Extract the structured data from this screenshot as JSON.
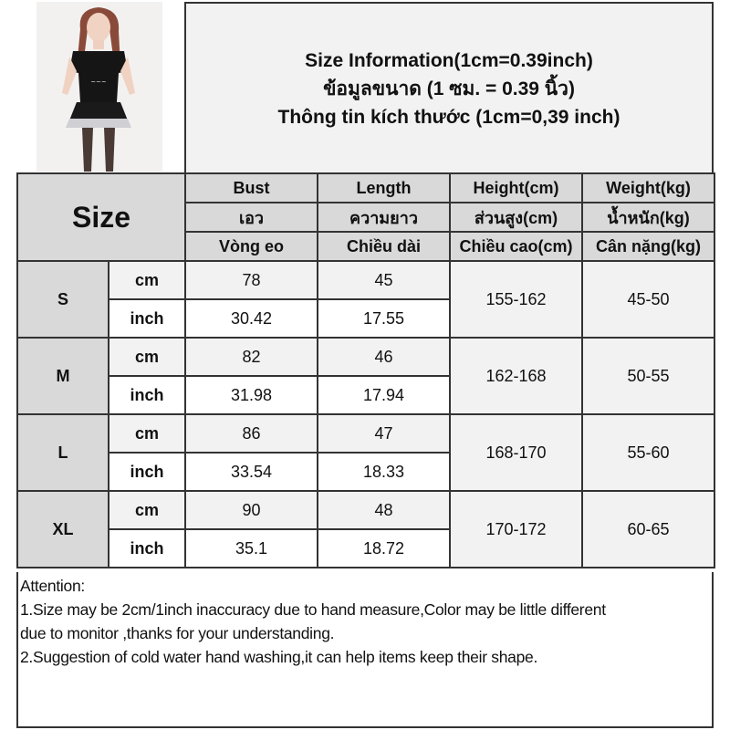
{
  "title_lines": [
    "Size Information(1cm=0.39inch)",
    "ข้อมูลขนาด (1 ซม. = 0.39 นิ้ว)",
    "Thông tin kích thước (1cm=0,39 inch)"
  ],
  "header": {
    "size_label": "Size",
    "columns": [
      {
        "en": "Bust",
        "th": "เอว",
        "vi": "Vòng eo"
      },
      {
        "en": "Length",
        "th": "ความยาว",
        "vi": "Chiều dài"
      },
      {
        "en": "Height(cm)",
        "th": "ส่วนสูง(cm)",
        "vi": "Chiều cao(cm)"
      },
      {
        "en": "Weight(kg)",
        "th": "น้ำหนัก(kg)",
        "vi": "Cân nặng(kg)"
      }
    ]
  },
  "units": {
    "cm": "cm",
    "inch": "inch"
  },
  "sizes": [
    {
      "size": "S",
      "cm": {
        "bust": "78",
        "length": "45"
      },
      "inch": {
        "bust": "30.42",
        "length": "17.55"
      },
      "height": "155-162",
      "weight": "45-50"
    },
    {
      "size": "M",
      "cm": {
        "bust": "82",
        "length": "46"
      },
      "inch": {
        "bust": "31.98",
        "length": "17.94"
      },
      "height": "162-168",
      "weight": "50-55"
    },
    {
      "size": "L",
      "cm": {
        "bust": "86",
        "length": "47"
      },
      "inch": {
        "bust": "33.54",
        "length": "18.33"
      },
      "height": "168-170",
      "weight": "55-60"
    },
    {
      "size": "XL",
      "cm": {
        "bust": "90",
        "length": "48"
      },
      "inch": {
        "bust": "35.1",
        "length": "18.72"
      },
      "height": "170-172",
      "weight": "60-65"
    }
  ],
  "attention": {
    "heading": "Attention:",
    "lines": [
      "1.Size may be 2cm/1inch inaccuracy due to hand measure,Color may be little different",
      "due to monitor ,thanks for your understanding.",
      "2.Suggestion of cold water hand washing,it can help items keep their shape."
    ]
  }
}
